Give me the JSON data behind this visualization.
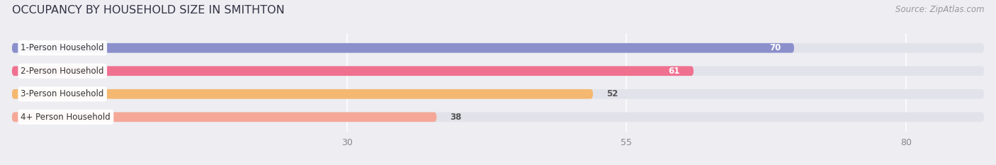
{
  "title": "OCCUPANCY BY HOUSEHOLD SIZE IN SMITHTON",
  "source": "Source: ZipAtlas.com",
  "categories": [
    "1-Person Household",
    "2-Person Household",
    "3-Person Household",
    "4+ Person Household"
  ],
  "values": [
    70,
    61,
    52,
    38
  ],
  "bar_colors": [
    "#8b90cc",
    "#f07090",
    "#f5b870",
    "#f5a898"
  ],
  "value_label_colors": [
    "white",
    "white",
    "black",
    "black"
  ],
  "xlim_max": 87,
  "xticks": [
    30,
    55,
    80
  ],
  "background_color": "#ededf2",
  "bar_bg_color": "#e2e2ea",
  "title_fontsize": 11.5,
  "source_fontsize": 8.5,
  "label_fontsize": 8.5,
  "value_fontsize": 8.5,
  "tick_fontsize": 9
}
